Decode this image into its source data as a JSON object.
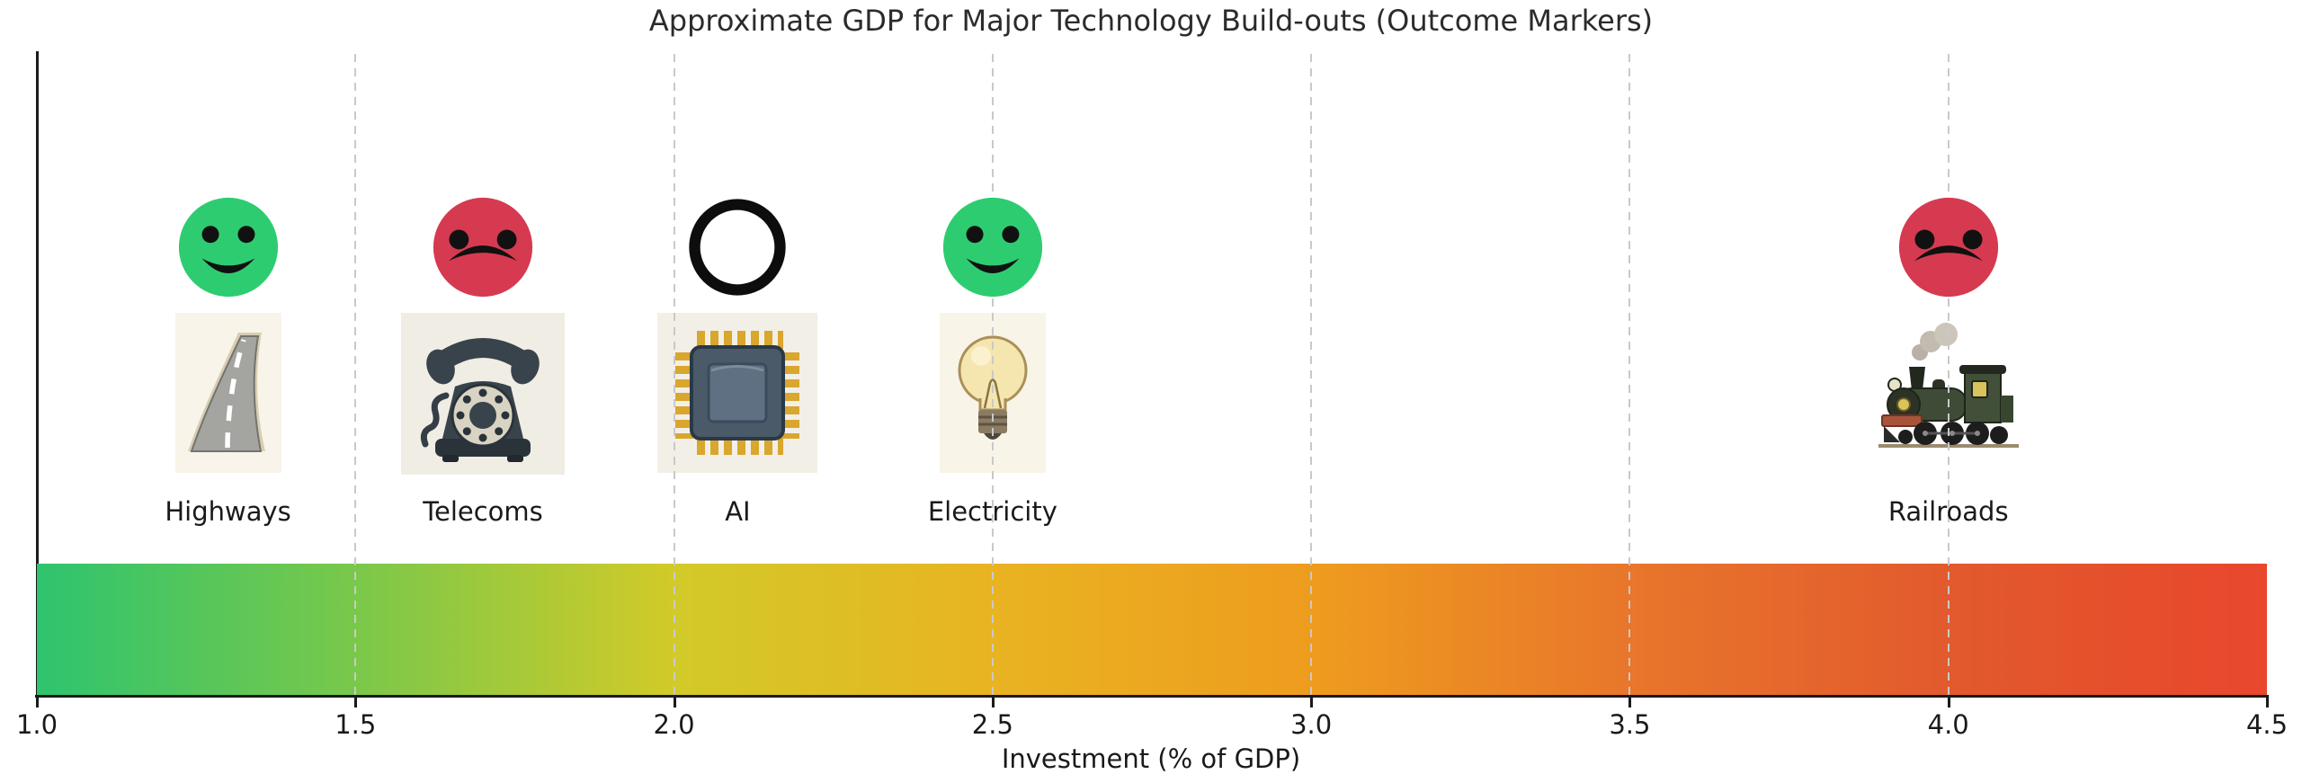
{
  "title": "Approximate GDP for Major Technology Build-outs (Outcome Markers)",
  "x_axis": {
    "label": "Investment (% of GDP)",
    "min": 1.0,
    "max": 4.5,
    "tick_labels": [
      "1.0",
      "1.5",
      "2.0",
      "2.5",
      "3.0",
      "3.5",
      "4.0",
      "4.5"
    ],
    "gridlines_at": [
      1.5,
      2.0,
      2.5,
      3.0,
      3.5,
      4.0
    ]
  },
  "chart_data": {
    "type": "scatter",
    "title": "Approximate GDP for Major Technology Build-outs (Outcome Markers)",
    "xlabel": "Investment (% of GDP)",
    "xlim": [
      1.0,
      4.5
    ],
    "grid": "vertical-dashed",
    "legend": "none",
    "points": [
      {
        "label": "Highways",
        "x": 1.3,
        "outcome": "good",
        "outcome_marker": "green-smiley-face",
        "icon": "road"
      },
      {
        "label": "Telecoms",
        "x": 1.7,
        "outcome": "bad",
        "outcome_marker": "red-frowny-face",
        "icon": "rotary-phone"
      },
      {
        "label": "AI",
        "x": 2.1,
        "outcome": "unknown",
        "outcome_marker": "open-circle",
        "icon": "computer-chip"
      },
      {
        "label": "Electricity",
        "x": 2.5,
        "outcome": "good",
        "outcome_marker": "green-smiley-face",
        "icon": "light-bulb"
      },
      {
        "label": "Railroads",
        "x": 4.0,
        "outcome": "bad",
        "outcome_marker": "red-frowny-face",
        "icon": "steam-train"
      }
    ],
    "colorbar": {
      "orientation": "horizontal",
      "stops": [
        {
          "pos": 0.0,
          "color": "#2ec46e"
        },
        {
          "pos": 0.143,
          "color": "#7ac84a"
        },
        {
          "pos": 0.286,
          "color": "#d2ca28"
        },
        {
          "pos": 0.429,
          "color": "#e9b322"
        },
        {
          "pos": 0.571,
          "color": "#ee9c1e"
        },
        {
          "pos": 0.714,
          "color": "#e8762b"
        },
        {
          "pos": 0.857,
          "color": "#e25a2d"
        },
        {
          "pos": 1.0,
          "color": "#e8472c"
        }
      ]
    }
  },
  "colors": {
    "good_face": "#2ecc71",
    "bad_face": "#d63a50",
    "unknown_ring": "#0d0d0d",
    "face_features": "#111111",
    "axis": "#1a1a1a",
    "gridline": "#c9c9c9",
    "text": "#262626"
  }
}
